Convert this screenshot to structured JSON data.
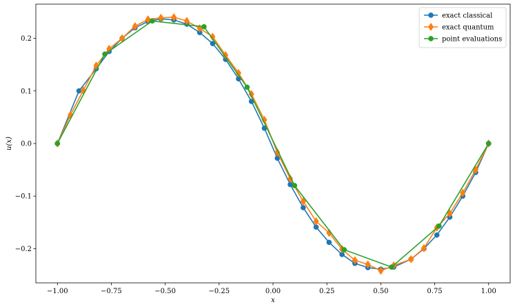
{
  "chart_data": {
    "type": "line",
    "title": "",
    "xlabel": "x",
    "ylabel": "u(x)",
    "xlim": [
      -1.1,
      1.1
    ],
    "ylim": [
      -0.265,
      0.265
    ],
    "xticks": [
      -1.0,
      -0.75,
      -0.5,
      -0.25,
      0.0,
      0.25,
      0.5,
      0.75,
      1.0
    ],
    "xtick_labels": [
      "−1.00",
      "−0.75",
      "−0.50",
      "−0.25",
      "0.00",
      "0.25",
      "0.50",
      "0.75",
      "1.00"
    ],
    "yticks": [
      -0.2,
      -0.1,
      0.0,
      0.1,
      0.2
    ],
    "ytick_labels": [
      "−0.2",
      "−0.1",
      "0.0",
      "0.1",
      "0.2"
    ],
    "grid": false,
    "legend_position": "top-right",
    "series": [
      {
        "name": "exact classical",
        "color": "#1f77b4",
        "marker": "circle",
        "x": [
          -1.0,
          -0.9,
          -0.82,
          -0.76,
          -0.7,
          -0.64,
          -0.58,
          -0.52,
          -0.46,
          -0.4,
          -0.34,
          -0.28,
          -0.22,
          -0.16,
          -0.1,
          -0.04,
          0.02,
          0.08,
          0.14,
          0.2,
          0.26,
          0.32,
          0.38,
          0.44,
          0.5,
          0.56,
          0.64,
          0.7,
          0.76,
          0.82,
          0.88,
          0.94,
          1.0
        ],
        "y": [
          0.0,
          0.1,
          0.142,
          0.175,
          0.2,
          0.22,
          0.232,
          0.237,
          0.235,
          0.227,
          0.211,
          0.19,
          0.16,
          0.123,
          0.08,
          0.029,
          -0.028,
          -0.078,
          -0.122,
          -0.159,
          -0.188,
          -0.211,
          -0.228,
          -0.236,
          -0.239,
          -0.235,
          -0.22,
          -0.2,
          -0.174,
          -0.14,
          -0.1,
          -0.055,
          0.0
        ]
      },
      {
        "name": "exact quantum",
        "color": "#ff7f0e",
        "marker": "diamond",
        "x": [
          -1.0,
          -0.94,
          -0.88,
          -0.82,
          -0.76,
          -0.7,
          -0.64,
          -0.58,
          -0.52,
          -0.46,
          -0.4,
          -0.34,
          -0.28,
          -0.22,
          -0.16,
          -0.1,
          -0.04,
          0.02,
          0.08,
          0.14,
          0.2,
          0.26,
          0.32,
          0.38,
          0.44,
          0.5,
          0.56,
          0.64,
          0.7,
          0.76,
          0.82,
          0.88,
          0.94,
          1.0
        ],
        "y": [
          0.0,
          0.054,
          0.101,
          0.148,
          0.18,
          0.2,
          0.223,
          0.236,
          0.239,
          0.24,
          0.233,
          0.219,
          0.203,
          0.168,
          0.134,
          0.094,
          0.045,
          -0.017,
          -0.067,
          -0.11,
          -0.148,
          -0.17,
          -0.201,
          -0.222,
          -0.23,
          -0.242,
          -0.232,
          -0.22,
          -0.199,
          -0.16,
          -0.133,
          -0.094,
          -0.05,
          0.0
        ]
      },
      {
        "name": "point evaluations",
        "color": "#2ca02c",
        "marker": "circle",
        "x": [
          -1.0,
          -0.78,
          -0.56,
          -0.32,
          -0.12,
          0.1,
          0.33,
          0.55,
          0.77,
          1.0
        ],
        "y": [
          0.0,
          0.17,
          0.233,
          0.222,
          0.107,
          -0.08,
          -0.202,
          -0.235,
          -0.157,
          0.0
        ]
      }
    ]
  }
}
